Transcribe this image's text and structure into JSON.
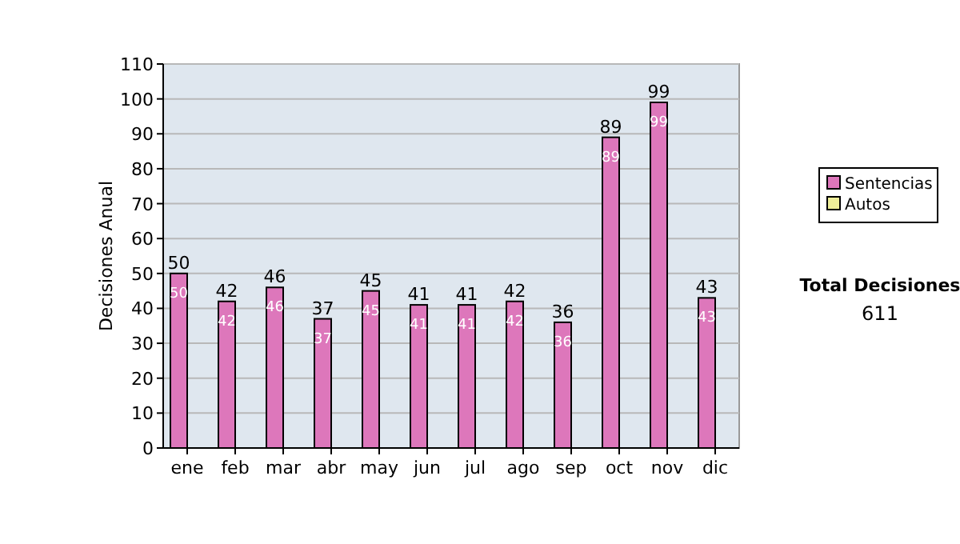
{
  "chart_data": {
    "type": "bar",
    "ylabel": "Decisiones Anual",
    "categories": [
      "ene",
      "feb",
      "mar",
      "abr",
      "may",
      "jun",
      "jul",
      "ago",
      "sep",
      "oct",
      "nov",
      "dic"
    ],
    "series": [
      {
        "name": "Sentencias",
        "color": "#dd77bb",
        "values": [
          50,
          42,
          46,
          37,
          45,
          41,
          41,
          42,
          36,
          89,
          99,
          43
        ],
        "value_labels": [
          "50",
          "42",
          "46",
          "37",
          "45",
          "41",
          "41",
          "42",
          "36",
          "89",
          "99",
          "43"
        ]
      },
      {
        "name": "Autos",
        "color": "#eeee99",
        "values": [
          null,
          null,
          null,
          null,
          null,
          null,
          null,
          null,
          null,
          null,
          null,
          null
        ]
      }
    ],
    "ylim": [
      0,
      110
    ],
    "yticks": [
      0,
      10,
      20,
      30,
      40,
      50,
      60,
      70,
      80,
      90,
      100,
      110
    ],
    "grid": "y",
    "legend": "right",
    "annotations": [
      "Total Decisiones",
      "611",
      {
        "text": "50",
        "x": "ene",
        "y": 50
      },
      {
        "text": "42",
        "x": "feb",
        "y": 42
      },
      {
        "text": "46",
        "x": "mar",
        "y": 46
      },
      {
        "text": "37",
        "x": "abr",
        "y": 37
      },
      {
        "text": "45",
        "x": "may",
        "y": 45
      },
      {
        "text": "41",
        "x": "jun",
        "y": 41
      },
      {
        "text": "41",
        "x": "jul",
        "y": 41
      },
      {
        "text": "42",
        "x": "ago",
        "y": 42
      },
      {
        "text": "36",
        "x": "sep",
        "y": 36
      },
      {
        "text": "89",
        "x": "oct",
        "y": 89
      },
      {
        "text": "99",
        "x": "nov",
        "y": 99
      },
      {
        "text": "43",
        "x": "dic",
        "y": 43
      }
    ]
  }
}
